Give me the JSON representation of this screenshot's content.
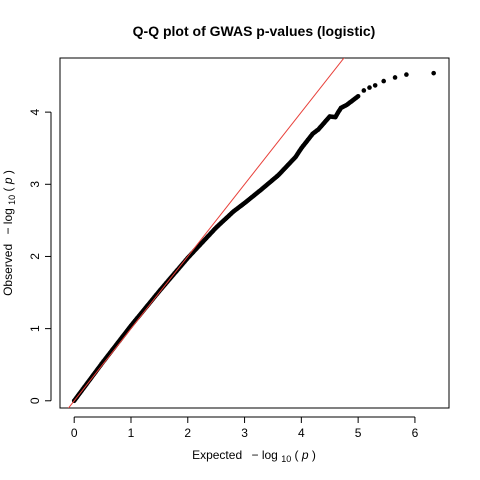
{
  "chart_data": {
    "type": "scatter",
    "title": "Q-Q plot of GWAS p-values (logistic)",
    "xlabel": {
      "prefix": "Expected",
      "minus": "−",
      "fn": "log",
      "sub": "10",
      "arg": "p"
    },
    "ylabel": {
      "prefix": "Observed",
      "minus": "−",
      "fn": "log",
      "sub": "10",
      "arg": "p"
    },
    "xlim": [
      -0.25,
      6.6
    ],
    "ylim": [
      -0.1,
      4.75
    ],
    "x_ticks": [
      0,
      1,
      2,
      3,
      4,
      5,
      6
    ],
    "y_ticks": [
      0,
      1,
      2,
      3,
      4
    ],
    "grid": false,
    "point_color": "#000000",
    "reference_line": {
      "slope": 1,
      "intercept": 0,
      "color": "#e8403a"
    },
    "series": [
      {
        "curve": {
          "x": [
            0,
            0.5,
            1.0,
            1.5,
            2.0,
            2.5,
            2.8,
            3.0,
            3.3,
            3.6,
            3.9,
            4.0,
            4.2,
            4.3,
            4.4,
            4.5,
            4.6,
            4.65,
            4.7,
            4.8,
            4.9,
            5.0
          ],
          "y": [
            0,
            0.53,
            1.04,
            1.52,
            1.98,
            2.4,
            2.62,
            2.74,
            2.93,
            3.13,
            3.38,
            3.5,
            3.7,
            3.76,
            3.85,
            3.94,
            3.93,
            4.0,
            4.06,
            4.1,
            4.16,
            4.22
          ]
        },
        "points": {
          "x": [
            5.1,
            5.2,
            5.3,
            5.45,
            5.65,
            5.85,
            6.33
          ],
          "y": [
            4.3,
            4.34,
            4.37,
            4.43,
            4.48,
            4.52,
            4.54
          ]
        }
      }
    ]
  }
}
